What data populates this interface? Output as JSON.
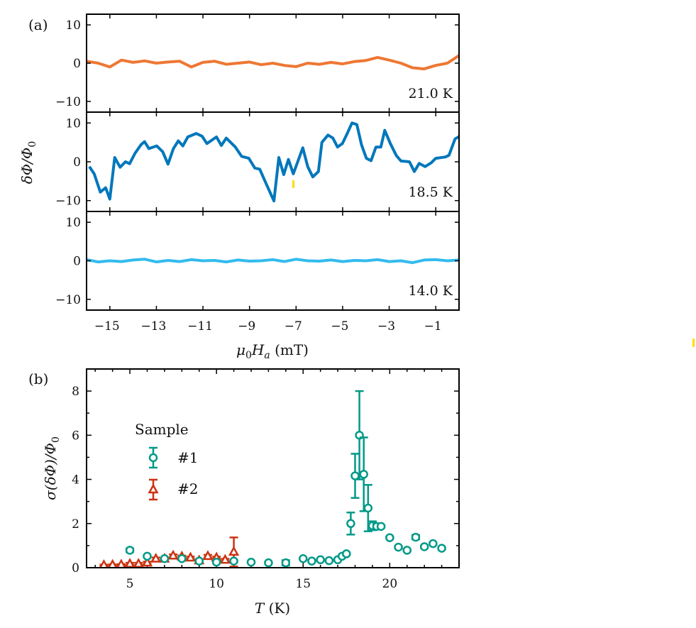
{
  "colors": {
    "t21": "#EE7733",
    "t185": "#0077BB",
    "t14": "#33BBEE",
    "sample1": "#009988",
    "sample2": "#CC3311",
    "artifact": "#FFDD00"
  },
  "panel_a": {
    "tag": "(a)",
    "ylabel": "δΦ/Φ₀",
    "xlabel": "μ₀Hₐ (mT)",
    "xlabel_parts": {
      "mu": "μ",
      "sub0": "0",
      "H": "H",
      "suba": "a",
      "unit": " (mT)"
    },
    "ylabel_parts": {
      "main": "δΦ/Φ",
      "sub": "0"
    }
  },
  "panel_b": {
    "tag": "(b)",
    "ylabel_parts": {
      "main": "σ(δΦ)/Φ",
      "sub": "0"
    },
    "xlabel_parts": {
      "T": "T",
      "unit": " (K)"
    },
    "legend": {
      "title": "Sample",
      "entries": [
        "#1",
        "#2"
      ]
    }
  },
  "chart_data": [
    {
      "type": "line",
      "panel": "a",
      "xlabel": "μ0Ha (mT)",
      "ylabel": "δΦ/Φ0",
      "xlim": [
        -16,
        0
      ],
      "ylim": [
        -12.8,
        12.8
      ],
      "xticks": [
        "−15",
        "−13",
        "−11",
        "−9",
        "−7",
        "−5",
        "−3",
        "−1"
      ],
      "xtick_values": [
        -15,
        -13,
        -11,
        -9,
        -7,
        -5,
        -3,
        -1
      ],
      "yticks": [
        "10",
        "0",
        "−10"
      ],
      "ytick_values": [
        10,
        0,
        -10
      ],
      "grid": false,
      "series": [
        {
          "name": "21.0 K",
          "x": [
            -16,
            -15.5,
            -15,
            -14.5,
            -14,
            -13.5,
            -13,
            -12.5,
            -12,
            -11.5,
            -11,
            -10.5,
            -10,
            -9.5,
            -9,
            -8.5,
            -8,
            -7.5,
            -7,
            -6.5,
            -6,
            -5.5,
            -5,
            -4.5,
            -4,
            -3.5,
            -3,
            -2.5,
            -2,
            -1.5,
            -1,
            -0.5,
            0
          ],
          "y": [
            0.5,
            0,
            -1,
            0.8,
            0.2,
            0.6,
            0,
            0.3,
            0.5,
            -1,
            0.2,
            0.5,
            -0.3,
            0,
            0.3,
            -0.4,
            0,
            -0.6,
            -0.9,
            0,
            -0.3,
            0.2,
            -0.2,
            0.4,
            0.7,
            1.5,
            0.8,
            0,
            -1.2,
            -1.5,
            -0.6,
            0,
            2
          ]
        },
        {
          "name": "18.5 K",
          "x": [
            -15.88,
            -15.67,
            -15.41,
            -15.18,
            -15,
            -14.79,
            -14.56,
            -14.33,
            -14.15,
            -13.92,
            -13.66,
            -13.51,
            -13.32,
            -12.99,
            -12.73,
            -12.5,
            -12.27,
            -12.06,
            -11.86,
            -11.65,
            -11.29,
            -11.04,
            -10.83,
            -10.42,
            -10.21,
            -10,
            -9.61,
            -9.34,
            -9.03,
            -8.77,
            -8.56,
            -8.31,
            -7.95,
            -7.74,
            -7.53,
            -7.33,
            -7.12,
            -6.71,
            -6.5,
            -6.28,
            -6.04,
            -5.89,
            -5.63,
            -5.42,
            -5.22,
            -5.01,
            -4.81,
            -4.6,
            -4.39,
            -4.19,
            -3.98,
            -3.78,
            -3.57,
            -3.36,
            -3.19,
            -2.95,
            -2.69,
            -2.49,
            -2.13,
            -1.92,
            -1.71,
            -1.46,
            -1.2,
            -1,
            -0.58,
            -0.43,
            -0.17,
            0
          ],
          "y": [
            -1.25,
            -3.1,
            -7.8,
            -6.7,
            -9.6,
            1.1,
            -1.4,
            0,
            -0.5,
            2.2,
            4.4,
            5.2,
            3.4,
            4.1,
            2.6,
            -0.6,
            3.4,
            5.4,
            4.1,
            6.4,
            7.3,
            6.6,
            4.7,
            6.4,
            4.2,
            6.1,
            3.8,
            1.4,
            0.9,
            -1.6,
            -1.9,
            -5.3,
            -10.1,
            1.1,
            -3.3,
            0.6,
            -3.1,
            3.6,
            -1.25,
            -3.9,
            -2.5,
            5,
            6.9,
            6.1,
            3.8,
            4.7,
            7.2,
            10,
            9.6,
            4.4,
            0.9,
            0.3,
            3.8,
            3.8,
            8.1,
            4.7,
            1.6,
            0.2,
            0,
            -2.5,
            -0.4,
            -1.25,
            -0.3,
            0.9,
            1.25,
            1.7,
            5.9,
            6.5
          ]
        },
        {
          "name": "14.0 K",
          "x": [
            -16,
            -15.5,
            -15,
            -14.5,
            -14,
            -13.5,
            -13,
            -12.5,
            -12,
            -11.5,
            -11,
            -10.5,
            -10,
            -9.5,
            -9,
            -8.5,
            -8,
            -7.5,
            -7,
            -6.5,
            -6,
            -5.5,
            -5,
            -4.5,
            -4,
            -3.5,
            -3,
            -2.5,
            -2,
            -1.5,
            -1,
            -0.5,
            0
          ],
          "y": [
            0.3,
            -0.3,
            0,
            -0.2,
            0.2,
            0.4,
            -0.3,
            0.1,
            -0.2,
            0.3,
            0,
            0.1,
            -0.3,
            0.2,
            -0.1,
            0,
            0.3,
            -0.2,
            0.4,
            0,
            -0.1,
            0.2,
            -0.2,
            0.1,
            0,
            0.3,
            -0.2,
            0,
            -0.5,
            0.2,
            0.3,
            0,
            0.2
          ]
        }
      ]
    },
    {
      "type": "scatter",
      "panel": "b",
      "xlabel": "T (K)",
      "ylabel": "σ(δΦ)/Φ0",
      "xlim": [
        2.5,
        24
      ],
      "ylim": [
        0,
        9
      ],
      "xticks": [
        "5",
        "10",
        "15",
        "20"
      ],
      "xtick_values": [
        5,
        10,
        15,
        20
      ],
      "yticks": [
        "0",
        "2",
        "4",
        "6",
        "8"
      ],
      "ytick_values": [
        0,
        2,
        4,
        6,
        8
      ],
      "grid": false,
      "legend_title": "Sample",
      "legend_position": "center-left",
      "series": [
        {
          "name": "#1",
          "marker": "circle",
          "x": [
            5,
            6,
            7,
            8,
            9,
            10,
            11,
            12,
            13,
            14,
            15,
            15.5,
            16,
            16.5,
            17,
            17.25,
            17.5,
            17.75,
            18,
            18.25,
            18.5,
            18.75,
            19,
            19.25,
            19.5,
            20,
            20.5,
            21,
            21.5,
            22,
            22.5,
            23
          ],
          "y": [
            0.79,
            0.52,
            0.41,
            0.41,
            0.3,
            0.25,
            0.3,
            0.25,
            0.22,
            0.22,
            0.41,
            0.3,
            0.36,
            0.32,
            0.36,
            0.52,
            0.63,
            2.0,
            4.16,
            6.0,
            4.23,
            2.7,
            1.9,
            1.87,
            1.87,
            1.36,
            0.93,
            0.79,
            1.38,
            0.95,
            1.09,
            0.88
          ],
          "err": [
            0.08,
            0.03,
            0.03,
            0.03,
            0.03,
            0.03,
            0.03,
            0.03,
            0.03,
            0.12,
            0.03,
            0.03,
            0.03,
            0.03,
            0.03,
            0.03,
            0.05,
            0.5,
            1.0,
            2.0,
            1.67,
            1.05,
            0.2,
            0.1,
            0.05,
            0.05,
            0.05,
            0.05,
            0.1,
            0.05,
            0.05,
            0.05
          ]
        },
        {
          "name": "#2",
          "marker": "triangle",
          "x": [
            3.5,
            4,
            4.5,
            5,
            5.5,
            6,
            6.5,
            7,
            7.5,
            8,
            8.5,
            9,
            9.5,
            10,
            10.5,
            11
          ],
          "y": [
            0.11,
            0.12,
            0.13,
            0.17,
            0.17,
            0.22,
            0.4,
            0.4,
            0.54,
            0.5,
            0.45,
            0.32,
            0.52,
            0.45,
            0.35,
            0.71
          ],
          "err": [
            0.03,
            0.03,
            0.03,
            0.05,
            0.05,
            0.05,
            0.06,
            0.05,
            0.06,
            0.05,
            0.05,
            0.05,
            0.06,
            0.05,
            0.05,
            0.66
          ]
        }
      ]
    }
  ]
}
